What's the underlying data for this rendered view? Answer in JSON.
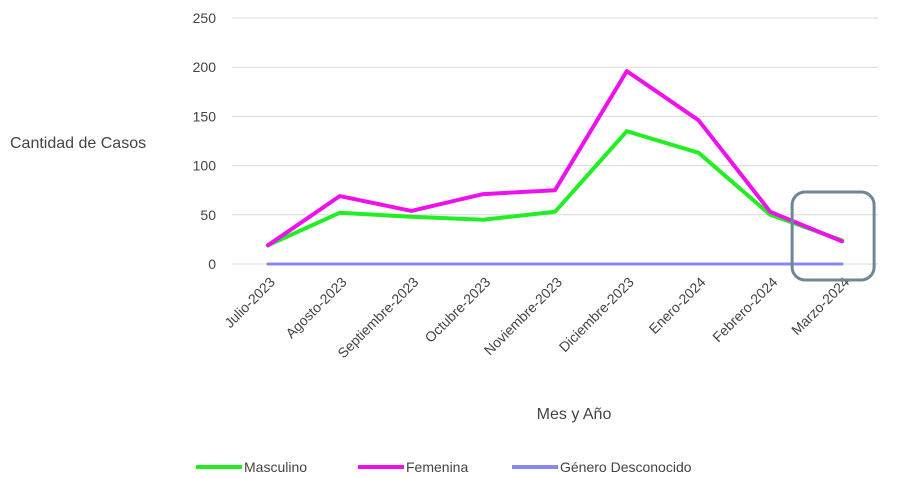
{
  "chart_data": {
    "type": "line",
    "title": "",
    "xlabel": "Mes y Año",
    "ylabel": "Cantidad de Casos",
    "ylim": [
      0,
      250
    ],
    "yticks": [
      0,
      50,
      100,
      150,
      200,
      250
    ],
    "grid": true,
    "legend_position": "bottom",
    "categories": [
      "Julio-2023",
      "Agosto-2023",
      "Septiembre-2023",
      "Octubre-2023",
      "Noviembre-2023",
      "Diciembre-2023",
      "Enero-2024",
      "Febrero-2024",
      "Marzo-2024"
    ],
    "series": [
      {
        "name": "Masculino",
        "color": "#22ee22",
        "values": [
          19,
          52,
          48,
          45,
          53,
          135,
          113,
          50,
          24
        ]
      },
      {
        "name": "Femenina",
        "color": "#ee11ee",
        "values": [
          19,
          69,
          54,
          71,
          75,
          196,
          146,
          53,
          23
        ]
      },
      {
        "name": "Género Desconocido",
        "color": "#8888ee",
        "values": [
          0,
          0,
          0,
          0,
          0,
          0,
          0,
          0,
          0
        ]
      }
    ],
    "annotations": [
      {
        "type": "highlight-box",
        "target": "Marzo-2024",
        "color": "#6e8794"
      }
    ]
  }
}
